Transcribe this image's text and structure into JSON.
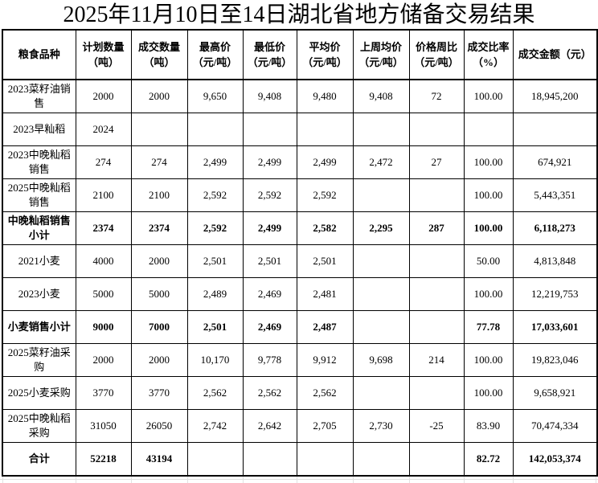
{
  "title": "2025年11月10日至14日湖北省地方储备交易结果",
  "table": {
    "columns": [
      "粮食品种",
      "计划数量\n（吨）",
      "成交数量\n（吨）",
      "最高价\n（元/吨）",
      "最低价\n（元/吨）",
      "平均价\n（元/吨）",
      "上周均价\n（元/吨）",
      "价格周比\n（元/吨）",
      "成交比率\n（%）",
      "成交金额（元）"
    ],
    "rows": [
      {
        "bold": false,
        "cells": [
          "2023菜籽油销\n售",
          "2000",
          "2000",
          "9,650",
          "9,408",
          "9,480",
          "9,408",
          "72",
          "100.00",
          "18,945,200"
        ]
      },
      {
        "bold": false,
        "cells": [
          "2023早籼稻",
          "2024",
          "",
          "",
          "",
          "",
          "",
          "",
          "",
          ""
        ]
      },
      {
        "bold": false,
        "cells": [
          "2023中晚籼稻\n销售",
          "274",
          "274",
          "2,499",
          "2,499",
          "2,499",
          "2,472",
          "27",
          "100.00",
          "674,921"
        ]
      },
      {
        "bold": false,
        "cells": [
          "2025中晚籼稻\n销售",
          "2100",
          "2100",
          "2,592",
          "2,592",
          "2,592",
          "",
          "",
          "100.00",
          "5,443,351"
        ]
      },
      {
        "bold": true,
        "cells": [
          "中晚籼稻销售\n小计",
          "2374",
          "2374",
          "2,592",
          "2,499",
          "2,582",
          "2,295",
          "287",
          "100.00",
          "6,118,273"
        ]
      },
      {
        "bold": false,
        "cells": [
          "2021小麦",
          "4000",
          "2000",
          "2,501",
          "2,501",
          "2,501",
          "",
          "",
          "50.00",
          "4,813,848"
        ]
      },
      {
        "bold": false,
        "cells": [
          "2023小麦",
          "5000",
          "5000",
          "2,489",
          "2,469",
          "2,481",
          "",
          "",
          "100.00",
          "12,219,753"
        ]
      },
      {
        "bold": true,
        "cells": [
          "小麦销售小计",
          "9000",
          "7000",
          "2,501",
          "2,469",
          "2,487",
          "",
          "",
          "77.78",
          "17,033,601"
        ]
      },
      {
        "bold": false,
        "cells": [
          "2025菜籽油采\n购",
          "2000",
          "2000",
          "10,170",
          "9,778",
          "9,912",
          "9,698",
          "214",
          "100.00",
          "19,823,046"
        ]
      },
      {
        "bold": false,
        "cells": [
          "2025小麦采购",
          "3770",
          "3770",
          "2,562",
          "2,562",
          "2,562",
          "",
          "",
          "100.00",
          "9,658,921"
        ]
      },
      {
        "bold": false,
        "cells": [
          "2025中晚籼稻\n采购",
          "31050",
          "26050",
          "2,742",
          "2,642",
          "2,705",
          "2,730",
          "-25",
          "83.90",
          "70,474,334"
        ]
      },
      {
        "bold": true,
        "cells": [
          "合计",
          "52218",
          "43194",
          "",
          "",
          "",
          "",
          "",
          "82.72",
          "142,053,374"
        ]
      }
    ]
  },
  "colors": {
    "text": "#000000",
    "background": "#ffffff",
    "table_border": "#000000",
    "faint_gridline": "#e2e2e2"
  }
}
